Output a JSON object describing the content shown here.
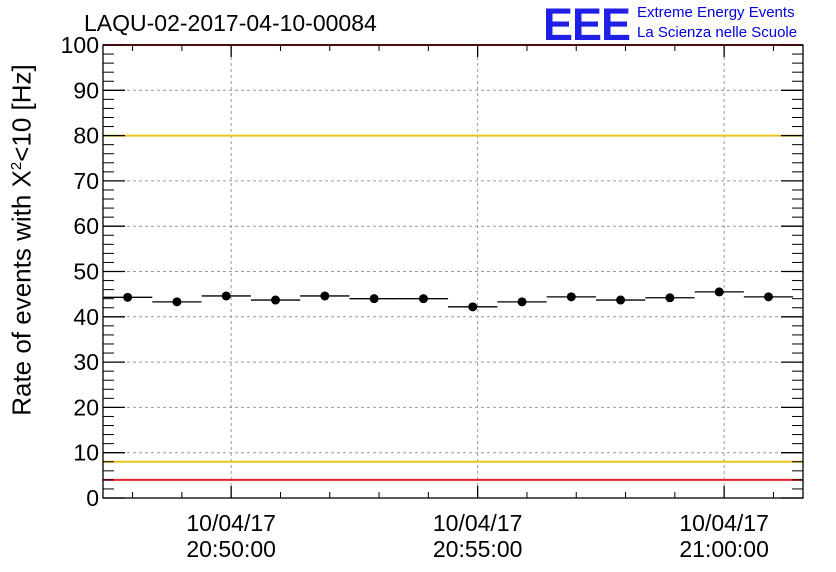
{
  "run_id": "LAQU-02-2017-04-10-00084",
  "logo": {
    "mark": "EEE",
    "line1": "Extreme Energy Events",
    "line2": "La Scienza nelle Scuole",
    "color": "#1f1fe6"
  },
  "y_axis": {
    "label_pre": "Rate of events with X",
    "label_sup": "2",
    "label_post": "<10 [Hz]"
  },
  "chart_data": {
    "type": "scatter",
    "ylim": [
      0,
      100
    ],
    "yticks": [
      0,
      10,
      20,
      30,
      40,
      50,
      60,
      70,
      80,
      90,
      100
    ],
    "xlim": [
      "2017-04-10 20:47:24",
      "2017-04-10 21:01:36"
    ],
    "xtick_labels": [
      {
        "date": "10/04/17",
        "time": "20:50:00"
      },
      {
        "date": "10/04/17",
        "time": "20:55:00"
      },
      {
        "date": "10/04/17",
        "time": "21:00:00"
      }
    ],
    "grid": true,
    "points": [
      {
        "x": "20:47:54",
        "y": 44.3
      },
      {
        "x": "20:48:54",
        "y": 43.3
      },
      {
        "x": "20:49:54",
        "y": 44.6
      },
      {
        "x": "20:50:54",
        "y": 43.7
      },
      {
        "x": "20:51:54",
        "y": 44.6
      },
      {
        "x": "20:52:54",
        "y": 44.0
      },
      {
        "x": "20:53:54",
        "y": 44.0
      },
      {
        "x": "20:54:54",
        "y": 42.2
      },
      {
        "x": "20:55:54",
        "y": 43.3
      },
      {
        "x": "20:56:54",
        "y": 44.4
      },
      {
        "x": "20:57:54",
        "y": 43.7
      },
      {
        "x": "20:58:54",
        "y": 44.2
      },
      {
        "x": "20:59:54",
        "y": 45.5
      },
      {
        "x": "21:00:54",
        "y": 44.4
      }
    ],
    "bin_width_seconds": 60,
    "reference_lines": [
      {
        "y": 100,
        "color": "#e8212a"
      },
      {
        "y": 80,
        "color": "#ecc31a"
      },
      {
        "y": 8,
        "color": "#ecc31a"
      },
      {
        "y": 4,
        "color": "#e8212a"
      }
    ]
  }
}
